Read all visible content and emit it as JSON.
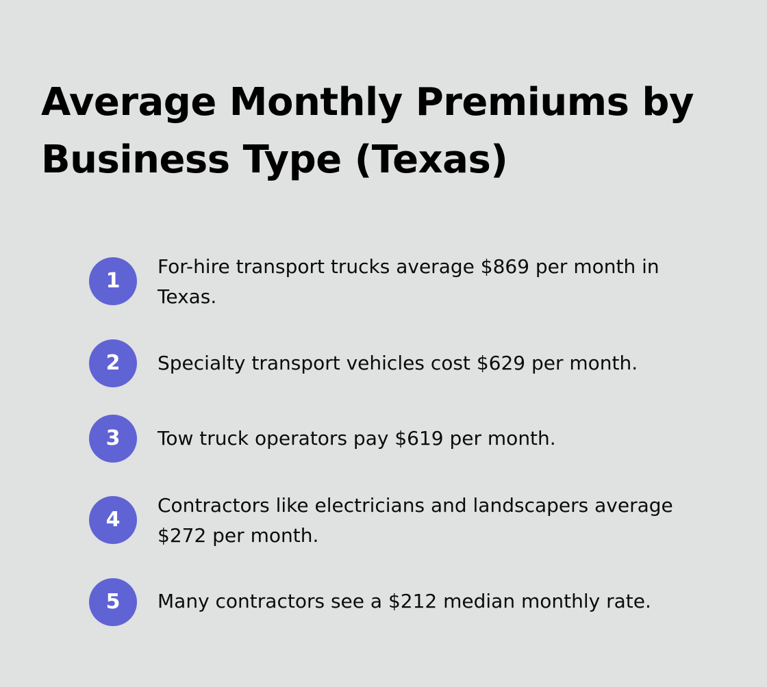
{
  "title": "Average Monthly Premiums by Business Type (Texas)",
  "accent_color": "#6063d4",
  "background_color": "#e0e1e1",
  "items": [
    {
      "number": "1",
      "text": "For-hire transport trucks average $869 per month in Texas."
    },
    {
      "number": "2",
      "text": "Specialty transport vehicles cost $629 per month."
    },
    {
      "number": "3",
      "text": "Tow truck operators pay $619 per month."
    },
    {
      "number": "4",
      "text": "Contractors like electricians and landscapers average $272 per month."
    },
    {
      "number": "5",
      "text": "Many contractors see a $212 median monthly rate."
    }
  ]
}
